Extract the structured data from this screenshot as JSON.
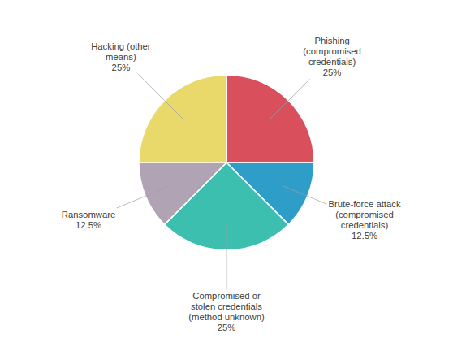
{
  "chart_data": {
    "type": "pie",
    "categories": [
      "Phishing\n(compromised\ncredentials)",
      "Brute-force attack\n(compromised\ncredentials)",
      "Compromised or\nstolen credentials\n(method unknown)",
      "Ransomware",
      "Hacking (other\nmeans)"
    ],
    "values": [
      25,
      12.5,
      25,
      12.5,
      25
    ],
    "value_labels": [
      "25%",
      "12.5%",
      "25%",
      "12.5%",
      "25%"
    ],
    "colors": [
      "#D94F5C",
      "#2E9EC8",
      "#3DBFB0",
      "#B0A4B4",
      "#E8D96A"
    ],
    "data_labels": true
  }
}
